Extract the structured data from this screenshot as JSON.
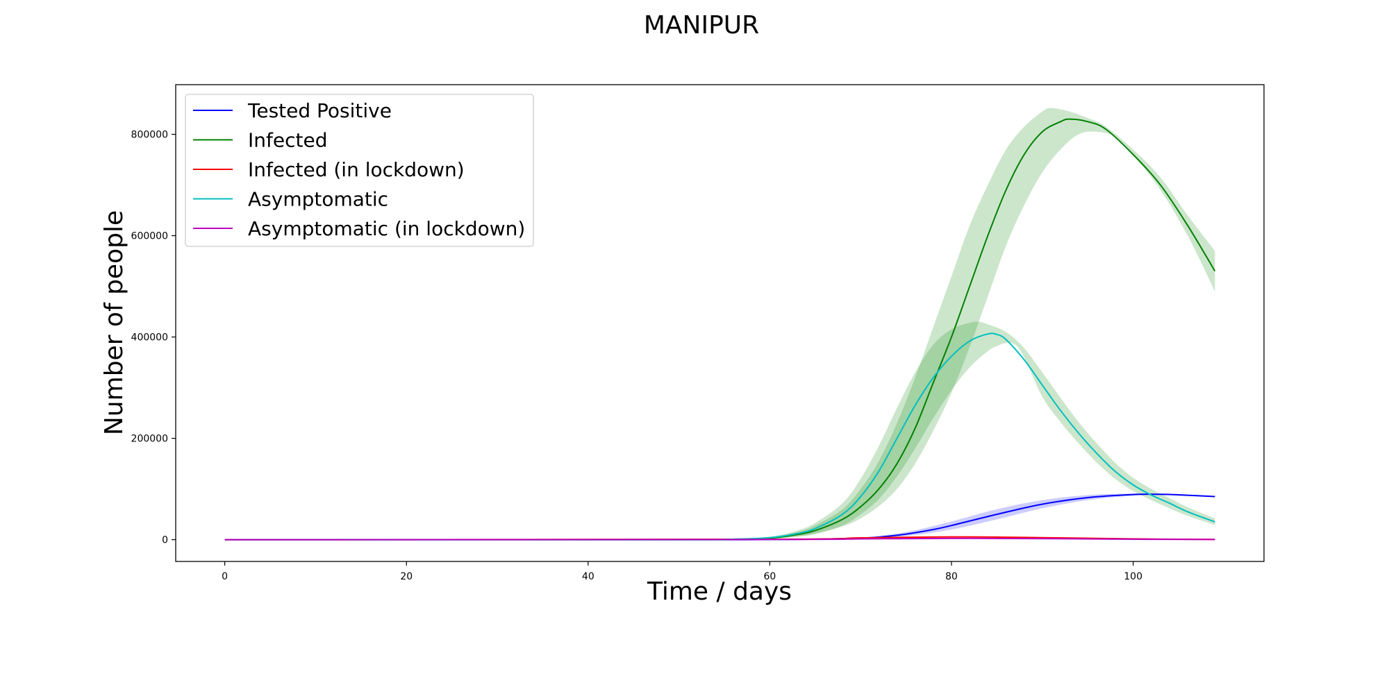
{
  "chart_data": {
    "type": "line",
    "title": "MANIPUR",
    "xlabel": "Time / days",
    "ylabel": "Number of people",
    "xlim": [
      -5.4,
      114.4
    ],
    "ylim": [
      -43000,
      898000
    ],
    "xticks": [
      0,
      20,
      40,
      60,
      80,
      100
    ],
    "yticks": [
      0,
      200000,
      400000,
      600000,
      800000
    ],
    "grid": false,
    "legend_position": "upper-left",
    "colors": {
      "tested_positive": "#0000ff",
      "infected": "#008000",
      "infected_lockdown": "#ff0000",
      "asymptomatic": "#00bfbf",
      "asymptomatic_lockdown": "#bf00bf",
      "band_green": "#008000",
      "band_blue": "#0000ff"
    },
    "series": [
      {
        "name": "Tested Positive",
        "key": "tested_positive",
        "points": [
          [
            0,
            0
          ],
          [
            50,
            0
          ],
          [
            60,
            300
          ],
          [
            65,
            1000
          ],
          [
            70,
            3000
          ],
          [
            72,
            5000
          ],
          [
            75,
            11000
          ],
          [
            78,
            20000
          ],
          [
            80,
            28000
          ],
          [
            85,
            50000
          ],
          [
            90,
            70000
          ],
          [
            95,
            83000
          ],
          [
            100,
            89000
          ],
          [
            103,
            89500
          ],
          [
            105,
            88500
          ],
          [
            109,
            85000
          ]
        ]
      },
      {
        "name": "Infected",
        "key": "infected",
        "points": [
          [
            0,
            0
          ],
          [
            50,
            0
          ],
          [
            55,
            500
          ],
          [
            60,
            3000
          ],
          [
            63,
            10000
          ],
          [
            65,
            18000
          ],
          [
            68,
            40000
          ],
          [
            70,
            65000
          ],
          [
            72,
            100000
          ],
          [
            74,
            150000
          ],
          [
            76,
            220000
          ],
          [
            78,
            310000
          ],
          [
            80,
            400000
          ],
          [
            82,
            500000
          ],
          [
            84,
            600000
          ],
          [
            86,
            690000
          ],
          [
            88,
            760000
          ],
          [
            90,
            805000
          ],
          [
            92,
            825000
          ],
          [
            93,
            830000
          ],
          [
            95,
            825000
          ],
          [
            97,
            810000
          ],
          [
            100,
            760000
          ],
          [
            103,
            700000
          ],
          [
            106,
            620000
          ],
          [
            109,
            530000
          ]
        ]
      },
      {
        "name": "Infected (in lockdown)",
        "key": "infected_lockdown",
        "points": [
          [
            0,
            0
          ],
          [
            60,
            800
          ],
          [
            70,
            3500
          ],
          [
            80,
            5500
          ],
          [
            90,
            4000
          ],
          [
            100,
            1500
          ],
          [
            109,
            500
          ]
        ]
      },
      {
        "name": "Asymptomatic",
        "key": "asymptomatic",
        "points": [
          [
            0,
            0
          ],
          [
            50,
            0
          ],
          [
            55,
            500
          ],
          [
            60,
            4000
          ],
          [
            63,
            12000
          ],
          [
            65,
            22000
          ],
          [
            68,
            50000
          ],
          [
            70,
            85000
          ],
          [
            72,
            135000
          ],
          [
            74,
            200000
          ],
          [
            76,
            265000
          ],
          [
            78,
            320000
          ],
          [
            80,
            362000
          ],
          [
            82,
            392000
          ],
          [
            84,
            406000
          ],
          [
            85,
            405000
          ],
          [
            86,
            395000
          ],
          [
            88,
            355000
          ],
          [
            90,
            305000
          ],
          [
            92,
            255000
          ],
          [
            94,
            210000
          ],
          [
            96,
            170000
          ],
          [
            98,
            135000
          ],
          [
            100,
            108000
          ],
          [
            102,
            88000
          ],
          [
            104,
            72000
          ],
          [
            106,
            55000
          ],
          [
            109,
            35000
          ]
        ]
      },
      {
        "name": "Asymptomatic (in lockdown)",
        "key": "asymptomatic_lockdown",
        "points": [
          [
            0,
            0
          ],
          [
            60,
            400
          ],
          [
            70,
            1500
          ],
          [
            80,
            2500
          ],
          [
            90,
            2000
          ],
          [
            100,
            800
          ],
          [
            109,
            300
          ]
        ]
      }
    ],
    "bands": [
      {
        "for": "infected",
        "upper": [
          [
            55,
            800
          ],
          [
            60,
            4500
          ],
          [
            63,
            15000
          ],
          [
            65,
            28000
          ],
          [
            68,
            60000
          ],
          [
            70,
            100000
          ],
          [
            72,
            155000
          ],
          [
            74,
            230000
          ],
          [
            76,
            320000
          ],
          [
            78,
            420000
          ],
          [
            80,
            520000
          ],
          [
            82,
            620000
          ],
          [
            84,
            700000
          ],
          [
            86,
            770000
          ],
          [
            88,
            815000
          ],
          [
            90,
            845000
          ],
          [
            91,
            852000
          ],
          [
            93,
            845000
          ],
          [
            95,
            832000
          ],
          [
            97,
            815000
          ],
          [
            100,
            770000
          ],
          [
            103,
            715000
          ],
          [
            106,
            640000
          ],
          [
            109,
            570000
          ]
        ],
        "lower": [
          [
            55,
            200
          ],
          [
            60,
            1500
          ],
          [
            63,
            6000
          ],
          [
            65,
            11000
          ],
          [
            68,
            26000
          ],
          [
            70,
            42000
          ],
          [
            72,
            66000
          ],
          [
            74,
            100000
          ],
          [
            76,
            150000
          ],
          [
            78,
            215000
          ],
          [
            80,
            290000
          ],
          [
            82,
            380000
          ],
          [
            84,
            480000
          ],
          [
            86,
            580000
          ],
          [
            88,
            660000
          ],
          [
            90,
            725000
          ],
          [
            92,
            770000
          ],
          [
            94,
            800000
          ],
          [
            96,
            805000
          ],
          [
            98,
            795000
          ],
          [
            100,
            760000
          ],
          [
            103,
            690000
          ],
          [
            106,
            600000
          ],
          [
            109,
            490000
          ]
        ]
      },
      {
        "for": "asymptomatic",
        "upper": [
          [
            55,
            800
          ],
          [
            60,
            6000
          ],
          [
            63,
            18000
          ],
          [
            65,
            33000
          ],
          [
            68,
            72000
          ],
          [
            70,
            120000
          ],
          [
            72,
            185000
          ],
          [
            74,
            260000
          ],
          [
            76,
            330000
          ],
          [
            78,
            385000
          ],
          [
            80,
            415000
          ],
          [
            82,
            428000
          ],
          [
            83,
            430000
          ],
          [
            84,
            425000
          ],
          [
            86,
            410000
          ],
          [
            88,
            378000
          ],
          [
            90,
            330000
          ],
          [
            92,
            280000
          ],
          [
            94,
            232000
          ],
          [
            96,
            190000
          ],
          [
            98,
            152000
          ],
          [
            100,
            122000
          ],
          [
            102,
            100000
          ],
          [
            104,
            82000
          ],
          [
            106,
            64000
          ],
          [
            109,
            42000
          ]
        ],
        "lower": [
          [
            55,
            200
          ],
          [
            60,
            2000
          ],
          [
            63,
            6500
          ],
          [
            65,
            12000
          ],
          [
            68,
            28000
          ],
          [
            70,
            50000
          ],
          [
            72,
            80000
          ],
          [
            74,
            125000
          ],
          [
            76,
            180000
          ],
          [
            78,
            240000
          ],
          [
            80,
            295000
          ],
          [
            82,
            340000
          ],
          [
            84,
            372000
          ],
          [
            85,
            382000
          ],
          [
            86,
            388000
          ],
          [
            87,
            385000
          ],
          [
            88,
            360000
          ],
          [
            90,
            282000
          ],
          [
            92,
            232000
          ],
          [
            94,
            190000
          ],
          [
            96,
            152000
          ],
          [
            98,
            120000
          ],
          [
            100,
            96000
          ],
          [
            102,
            78000
          ],
          [
            104,
            62000
          ],
          [
            106,
            47000
          ],
          [
            109,
            29000
          ]
        ]
      },
      {
        "for": "tested_positive",
        "upper": [
          [
            65,
            1500
          ],
          [
            70,
            4500
          ],
          [
            75,
            15000
          ],
          [
            80,
            36000
          ],
          [
            85,
            60000
          ],
          [
            90,
            78000
          ],
          [
            95,
            88000
          ],
          [
            100,
            91000
          ],
          [
            103,
            90000
          ],
          [
            106,
            88000
          ],
          [
            109,
            86000
          ]
        ],
        "lower": [
          [
            65,
            500
          ],
          [
            70,
            1500
          ],
          [
            75,
            7000
          ],
          [
            80,
            20000
          ],
          [
            85,
            40000
          ],
          [
            90,
            62000
          ],
          [
            95,
            78000
          ],
          [
            100,
            87000
          ],
          [
            103,
            88000
          ],
          [
            106,
            86000
          ],
          [
            109,
            84000
          ]
        ]
      }
    ]
  }
}
